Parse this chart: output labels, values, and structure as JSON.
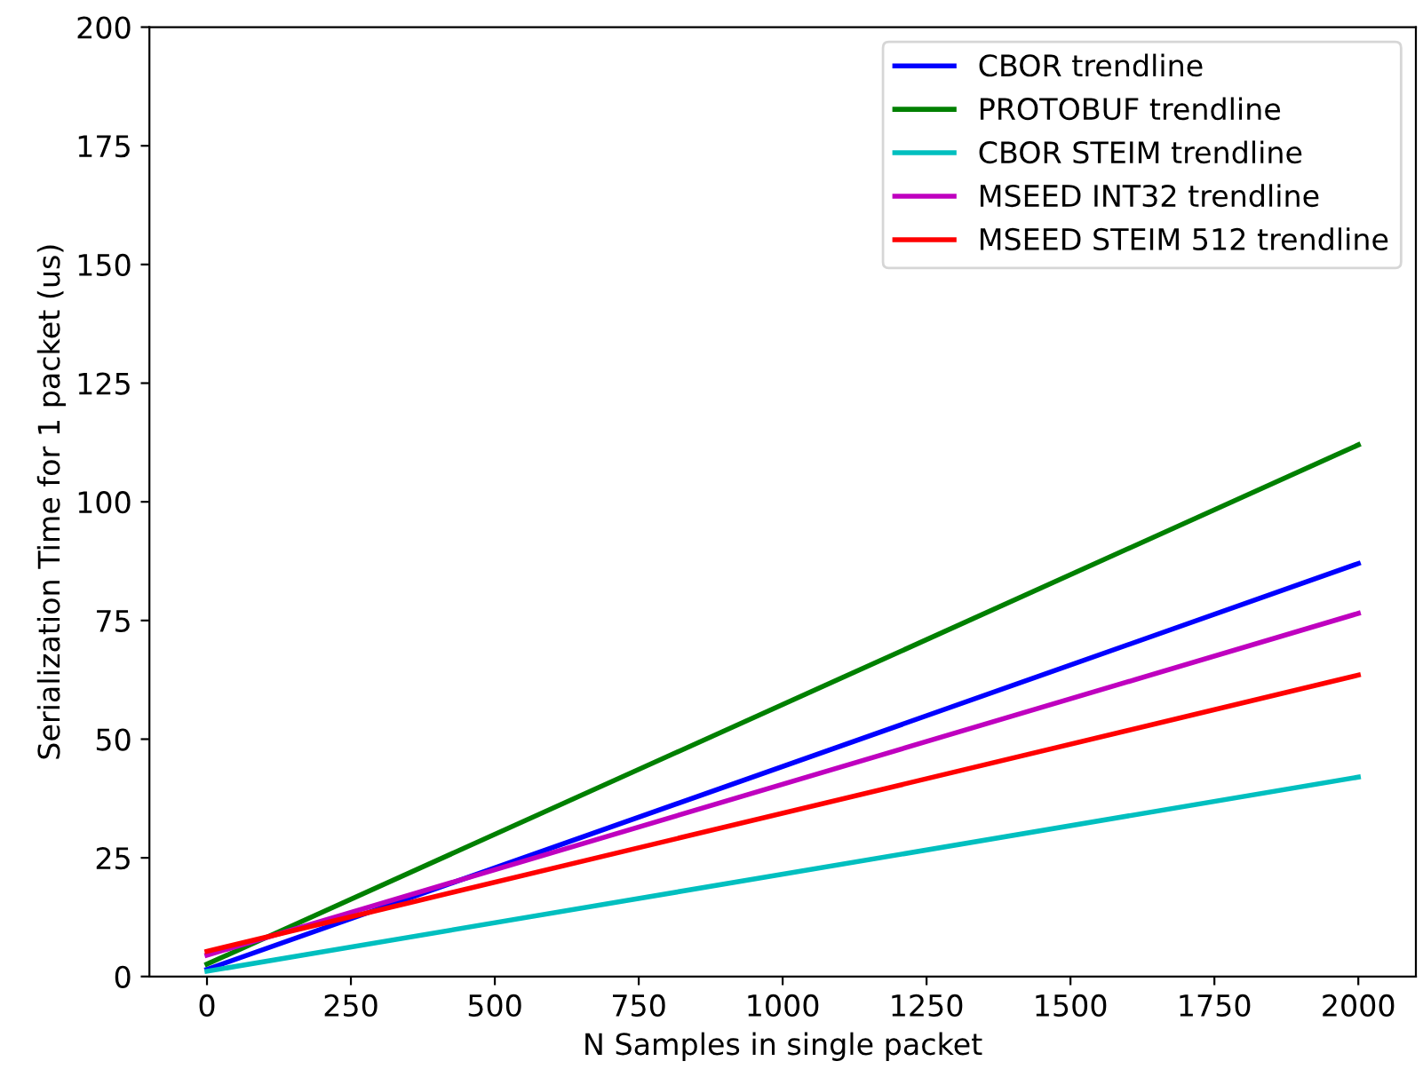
{
  "chart_data": {
    "type": "line",
    "xlabel": "N Samples in single packet",
    "ylabel": "Serialization Time for 1 packet (us)",
    "x": [
      0,
      2000
    ],
    "series": [
      {
        "name": "CBOR trendline",
        "color": "#0000ff",
        "values": [
          1.5,
          87
        ]
      },
      {
        "name": "PROTOBUF trendline",
        "color": "#008000",
        "values": [
          2.6,
          112
        ]
      },
      {
        "name": "CBOR STEIM trendline",
        "color": "#00bfbf",
        "values": [
          1.1,
          42
        ]
      },
      {
        "name": "MSEED INT32 trendline",
        "color": "#bf00bf",
        "values": [
          4.5,
          76.5
        ]
      },
      {
        "name": "MSEED STEIM 512 trendline",
        "color": "#ff0000",
        "values": [
          5.3,
          63.5
        ]
      }
    ],
    "xlim": [
      -100,
      2100
    ],
    "xticks": [
      0,
      250,
      500,
      750,
      1000,
      1250,
      1500,
      1750,
      2000
    ],
    "ylim": [
      0,
      200
    ],
    "yticks": [
      0,
      25,
      50,
      75,
      100,
      125,
      150,
      175,
      200
    ],
    "grid": false,
    "legend": "top right",
    "marker": "none",
    "line_style": "solid"
  }
}
